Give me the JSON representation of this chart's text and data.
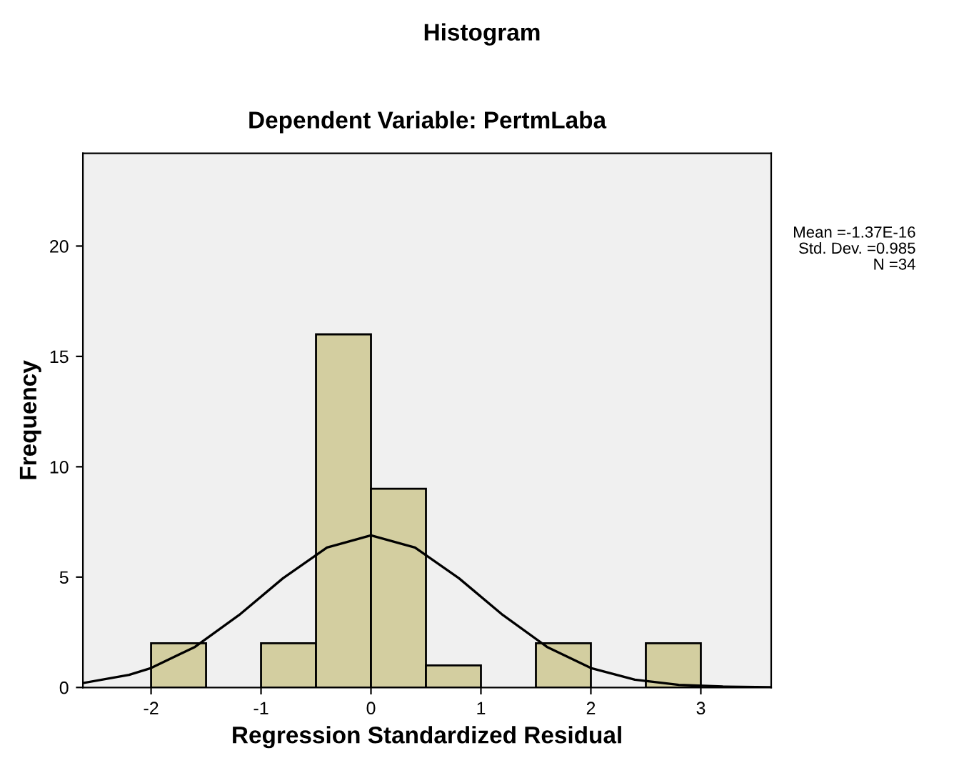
{
  "chart_data": {
    "type": "histogram",
    "title": "Histogram",
    "subtitle": "Dependent Variable: PertmLaba",
    "xlabel": "Regression Standardized Residual",
    "ylabel": "Frequency",
    "bins": [
      -2.0,
      -1.5,
      -1.0,
      -0.5,
      0.0,
      0.5,
      1.0,
      1.5,
      2.0,
      2.5,
      3.0
    ],
    "series": [
      {
        "color": "#d3cea0",
        "values": [
          2,
          0,
          2,
          16,
          9,
          1,
          0,
          2,
          0,
          2
        ]
      },
      {
        "type": "line",
        "color": "#000000",
        "x": [
          -2.62,
          -2.2,
          -2.0,
          -1.6,
          -1.2,
          -0.8,
          -0.4,
          0.0,
          0.4,
          0.8,
          1.2,
          1.6,
          2.0,
          2.4,
          2.8,
          3.2,
          3.64
        ],
        "values": [
          0.2,
          0.57,
          0.88,
          1.84,
          3.28,
          4.95,
          6.34,
          6.89,
          6.34,
          4.95,
          3.28,
          1.84,
          0.88,
          0.35,
          0.12,
          0.04,
          0.01
        ]
      }
    ],
    "xlim": [
      -2.62,
      3.64
    ],
    "ylim": [
      0,
      24.2
    ],
    "xticks": [
      -2,
      -1,
      0,
      1,
      2,
      3
    ],
    "yticks": [
      0,
      5,
      10,
      15,
      20
    ],
    "grid": false,
    "legend": false,
    "annotations": [
      "Mean =-1.37E-16",
      "Std. Dev. =0.985",
      "N =34"
    ]
  }
}
